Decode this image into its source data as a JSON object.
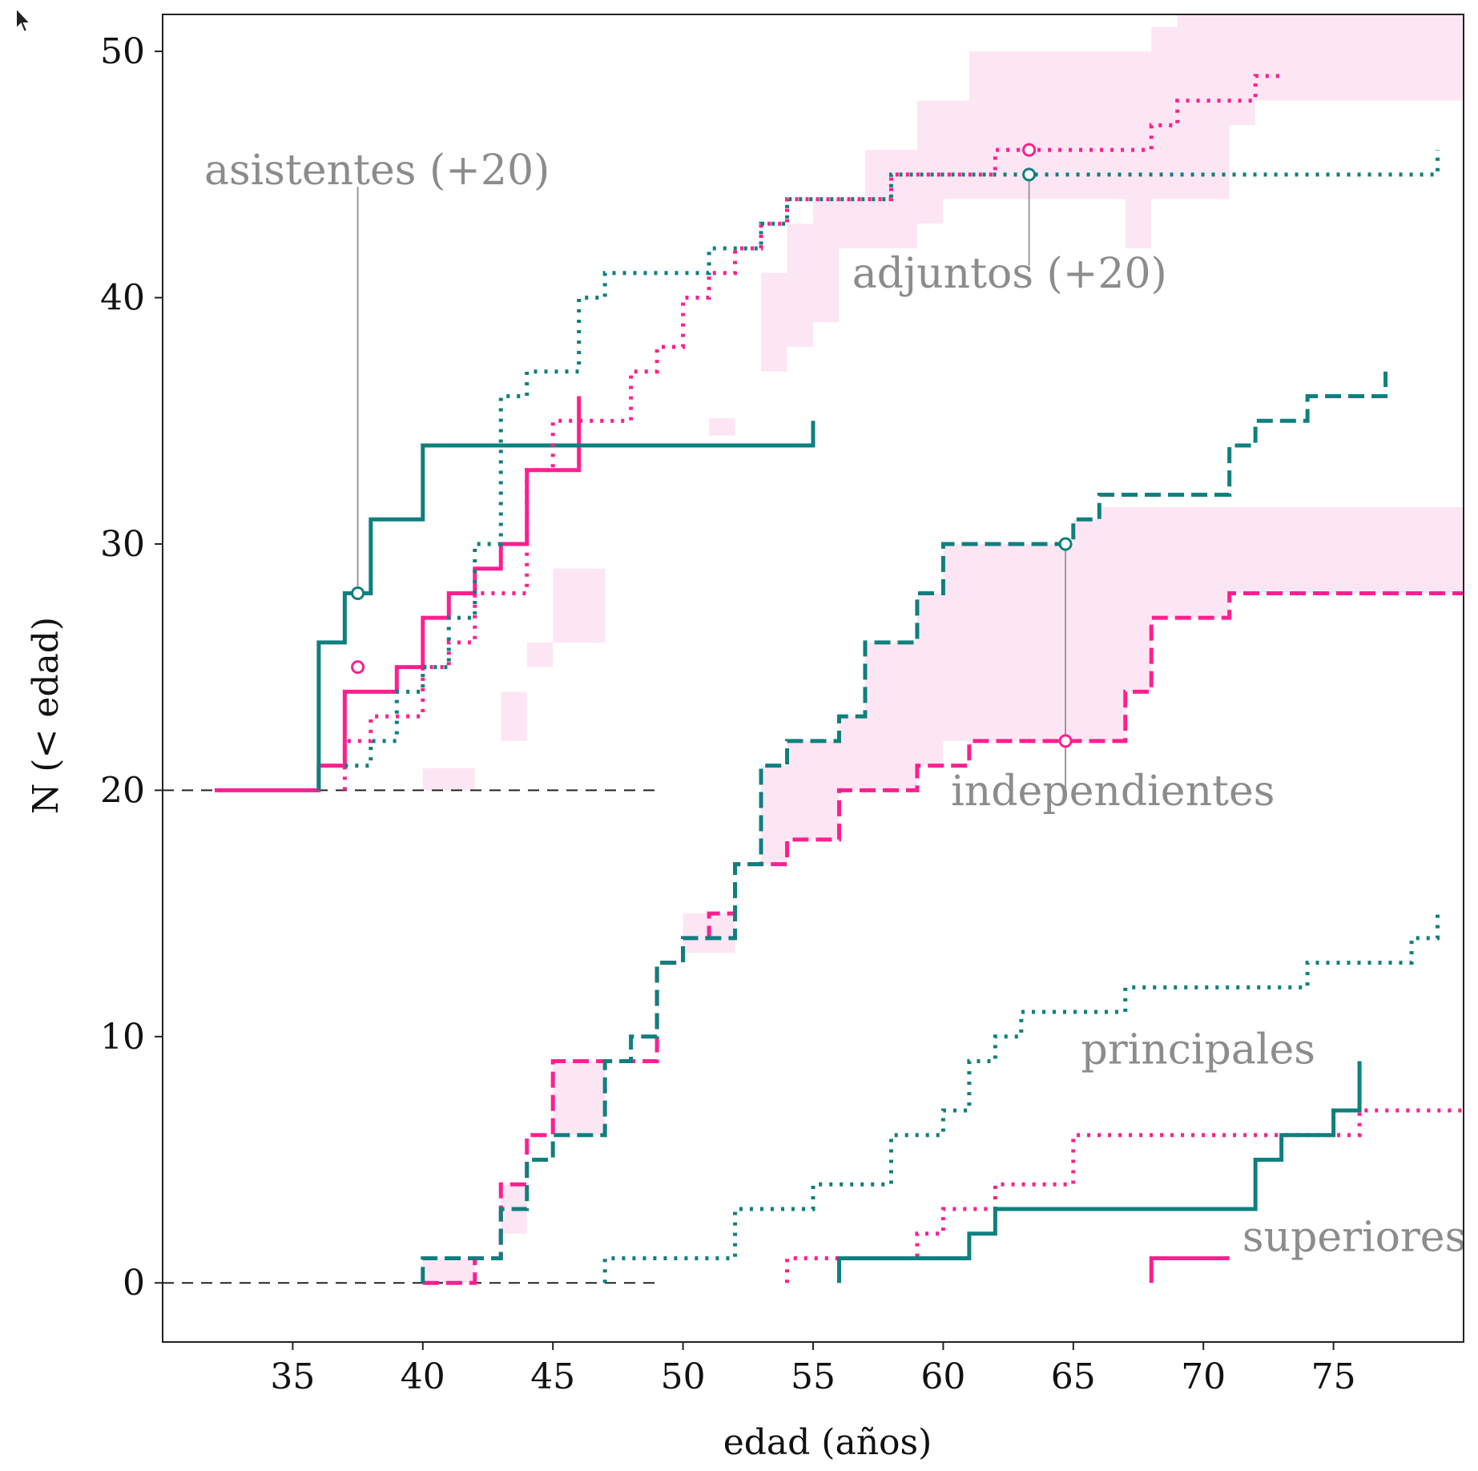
{
  "chart_data": {
    "type": "line",
    "title": "",
    "xlabel": "edad  (años)",
    "ylabel": "N  (< edad)",
    "xlim": [
      30,
      80
    ],
    "ylim": [
      -2.4,
      51.5
    ],
    "xticks": [
      35,
      40,
      45,
      50,
      55,
      60,
      65,
      70,
      75
    ],
    "yticks": [
      0,
      10,
      20,
      30,
      40,
      50
    ],
    "grid": false,
    "colors": {
      "women": "#ff1f8f",
      "men": "#0f7f7f",
      "band": "#fde6f3",
      "annotation": "#8c8c8c"
    },
    "baselines": [
      {
        "y": 20,
        "x": [
          30,
          49
        ]
      },
      {
        "y": 0,
        "x": [
          30,
          49
        ]
      }
    ],
    "series": [
      {
        "style": "solid",
        "color": "#ff1f8f",
        "x": [
          32,
          36,
          36,
          37,
          37,
          39,
          39,
          40,
          40,
          41,
          41,
          42,
          42,
          43,
          43,
          44,
          44,
          46,
          46
        ],
        "y": [
          20,
          20,
          21,
          21,
          24,
          24,
          25,
          25,
          27,
          27,
          28,
          28,
          29,
          29,
          30,
          30,
          33,
          33,
          36
        ]
      },
      {
        "style": "solid",
        "color": "#0f7f7f",
        "x": [
          36,
          36,
          37,
          37,
          38,
          38,
          40,
          40,
          55,
          55
        ],
        "y": [
          20,
          26,
          26,
          28,
          28,
          31,
          31,
          34,
          34,
          35
        ]
      },
      {
        "style": "dotted",
        "color": "#ff1f8f",
        "x": [
          37,
          37,
          38,
          38,
          40,
          40,
          41,
          41,
          42,
          42,
          44,
          44,
          45,
          45,
          46,
          46,
          48,
          48,
          49,
          49,
          50,
          50,
          51,
          51,
          52,
          52,
          53,
          53,
          54,
          54,
          58,
          58,
          61,
          61,
          62,
          62,
          68,
          68,
          69,
          69,
          72,
          72,
          73
        ],
        "y": [
          20,
          22,
          22,
          23,
          23,
          25,
          25,
          26,
          26,
          28,
          28,
          33,
          33,
          35,
          35,
          35,
          35,
          37,
          37,
          38,
          38,
          40,
          40,
          41,
          41,
          42,
          42,
          43,
          43,
          44,
          44,
          45,
          45,
          45,
          45,
          46,
          46,
          47,
          47,
          48,
          48,
          49,
          49
        ]
      },
      {
        "style": "dotted",
        "color": "#0f7f7f",
        "x": [
          37,
          38,
          38,
          39,
          39,
          40,
          40,
          41,
          41,
          42,
          42,
          43,
          43,
          44,
          44,
          46,
          46,
          47,
          47,
          48,
          48,
          51,
          51,
          53,
          53,
          54,
          54,
          55,
          55,
          58,
          58,
          79,
          79
        ],
        "y": [
          21,
          21,
          22,
          22,
          24,
          24,
          25,
          25,
          27,
          27,
          30,
          30,
          36,
          36,
          37,
          37,
          40,
          40,
          41,
          41,
          41,
          41,
          42,
          42,
          43,
          43,
          44,
          44,
          44,
          44,
          45,
          45,
          46
        ]
      },
      {
        "style": "dashed",
        "color": "#ff1f8f",
        "x": [
          40,
          42,
          42,
          43,
          43,
          44,
          44,
          45,
          45,
          47,
          47,
          49,
          49,
          50,
          50,
          51,
          51,
          52,
          52,
          53,
          53,
          54,
          54,
          56,
          56,
          58,
          58,
          59,
          59,
          60,
          60,
          61,
          61,
          67,
          67,
          68,
          68,
          71,
          71,
          80
        ],
        "y": [
          0,
          0,
          1,
          1,
          4,
          4,
          6,
          6,
          9,
          9,
          9,
          9,
          13,
          13,
          14,
          14,
          15,
          15,
          17,
          17,
          17,
          17,
          18,
          18,
          20,
          20,
          20,
          20,
          21,
          21,
          21,
          21,
          22,
          22,
          24,
          24,
          27,
          27,
          28,
          28
        ]
      },
      {
        "style": "dashed",
        "color": "#0f7f7f",
        "x": [
          40,
          40,
          43,
          43,
          44,
          44,
          45,
          45,
          47,
          47,
          48,
          48,
          49,
          49,
          50,
          50,
          52,
          52,
          53,
          53,
          54,
          54,
          56,
          56,
          57,
          57,
          59,
          59,
          60,
          60,
          65,
          65,
          66,
          66,
          71,
          71,
          72,
          72,
          74,
          74,
          77,
          77
        ],
        "y": [
          0,
          1,
          1,
          3,
          3,
          5,
          5,
          6,
          6,
          9,
          9,
          10,
          10,
          13,
          13,
          14,
          14,
          17,
          17,
          21,
          21,
          22,
          22,
          23,
          23,
          26,
          26,
          28,
          28,
          30,
          30,
          31,
          31,
          32,
          32,
          34,
          34,
          35,
          35,
          36,
          36,
          37
        ]
      },
      {
        "style": "dotted",
        "color": "#ff1f8f",
        "x": [
          54,
          54,
          58,
          58,
          59,
          59,
          60,
          60,
          62,
          62,
          65,
          65,
          69,
          69,
          76,
          76,
          80
        ],
        "y": [
          0,
          1,
          1,
          1,
          1,
          2,
          2,
          3,
          3,
          4,
          4,
          6,
          6,
          6,
          6,
          7,
          7
        ]
      },
      {
        "style": "dotted",
        "color": "#0f7f7f",
        "x": [
          47,
          47,
          52,
          52,
          55,
          55,
          58,
          58,
          60,
          60,
          61,
          61,
          62,
          62,
          63,
          63,
          67,
          67,
          74,
          74,
          78,
          78,
          79,
          79
        ],
        "y": [
          0,
          1,
          1,
          3,
          3,
          4,
          4,
          6,
          6,
          7,
          7,
          9,
          9,
          10,
          10,
          11,
          11,
          12,
          12,
          13,
          13,
          14,
          14,
          15
        ]
      },
      {
        "style": "solid",
        "color": "#0f7f7f",
        "x": [
          56,
          56,
          61,
          61,
          62,
          62,
          72,
          72,
          73,
          73,
          75,
          75,
          76,
          76
        ],
        "y": [
          0,
          1,
          1,
          2,
          2,
          3,
          3,
          5,
          5,
          6,
          6,
          7,
          7,
          9
        ]
      }
    ],
    "legend_sample": {
      "style": "solid",
      "color": "#ff1f8f",
      "x": [
        68,
        68,
        71
      ],
      "y": [
        0,
        1,
        1
      ]
    },
    "markers": [
      {
        "x": 37.5,
        "y": 28,
        "color": "#0f7f7f"
      },
      {
        "x": 37.5,
        "y": 25,
        "color": "#ff1f8f"
      },
      {
        "x": 63.3,
        "y": 46,
        "color": "#ff1f8f"
      },
      {
        "x": 63.3,
        "y": 45,
        "color": "#0f7f7f"
      },
      {
        "x": 64.7,
        "y": 30,
        "color": "#0f7f7f"
      },
      {
        "x": 64.7,
        "y": 22,
        "color": "#ff1f8f"
      }
    ],
    "leaders": [
      {
        "x": 37.5,
        "y": [
          28,
          44.5
        ]
      },
      {
        "x": 63.3,
        "y": [
          45,
          41.3
        ]
      },
      {
        "x": 64.7,
        "y": [
          30,
          20
        ]
      }
    ],
    "bands": [
      [
        [
          40,
          20
        ],
        [
          42,
          20
        ],
        [
          42,
          20.9
        ],
        [
          40,
          20.9
        ]
      ],
      [
        [
          43,
          22
        ],
        [
          44,
          22
        ],
        [
          44,
          24
        ],
        [
          43,
          24
        ]
      ],
      [
        [
          44,
          25
        ],
        [
          45,
          25
        ],
        [
          45,
          26
        ],
        [
          44,
          26
        ]
      ],
      [
        [
          45,
          26
        ],
        [
          47,
          26
        ],
        [
          47,
          29
        ],
        [
          45,
          29
        ]
      ],
      [
        [
          51,
          34.4
        ],
        [
          52,
          34.4
        ],
        [
          52,
          35.1
        ],
        [
          51,
          35.1
        ]
      ],
      [
        [
          53,
          37
        ],
        [
          54,
          37
        ],
        [
          54,
          38
        ],
        [
          55,
          38
        ],
        [
          55,
          39
        ],
        [
          56,
          39
        ],
        [
          56,
          42
        ],
        [
          59,
          42
        ],
        [
          59,
          43
        ],
        [
          60,
          43
        ],
        [
          60,
          44
        ],
        [
          67,
          44
        ],
        [
          67,
          42
        ],
        [
          68,
          42
        ],
        [
          68,
          44
        ],
        [
          71,
          44
        ],
        [
          71,
          47
        ],
        [
          72,
          47
        ],
        [
          72,
          48
        ],
        [
          80,
          48
        ],
        [
          80,
          51.5
        ],
        [
          69,
          51.5
        ],
        [
          69,
          51
        ],
        [
          68,
          51
        ],
        [
          68,
          50
        ],
        [
          61,
          50
        ],
        [
          61,
          48
        ],
        [
          59,
          48
        ],
        [
          59,
          46
        ],
        [
          57,
          46
        ],
        [
          57,
          44
        ],
        [
          55,
          44
        ],
        [
          55,
          43
        ],
        [
          54,
          43
        ],
        [
          54,
          41
        ],
        [
          53,
          41
        ]
      ],
      [
        [
          40,
          0
        ],
        [
          42,
          0
        ],
        [
          42,
          1
        ],
        [
          40,
          1
        ]
      ],
      [
        [
          43,
          2
        ],
        [
          44,
          2
        ],
        [
          44,
          4
        ],
        [
          43,
          4
        ]
      ],
      [
        [
          45,
          6
        ],
        [
          47,
          6
        ],
        [
          47,
          9
        ],
        [
          45,
          9
        ]
      ],
      [
        [
          50,
          13.4
        ],
        [
          52,
          13.4
        ],
        [
          52,
          15
        ],
        [
          50,
          15
        ]
      ],
      [
        [
          53,
          17
        ],
        [
          54,
          17
        ],
        [
          54,
          18
        ],
        [
          56,
          18
        ],
        [
          56,
          20
        ],
        [
          59,
          20
        ],
        [
          59,
          21
        ],
        [
          60,
          21
        ],
        [
          60,
          22
        ],
        [
          67,
          22
        ],
        [
          67,
          24
        ],
        [
          68,
          24
        ],
        [
          68,
          27
        ],
        [
          71,
          27
        ],
        [
          71,
          28
        ],
        [
          80,
          28
        ],
        [
          80,
          31.5
        ],
        [
          66,
          31.5
        ],
        [
          66,
          31
        ],
        [
          65,
          31
        ],
        [
          65,
          30
        ],
        [
          60,
          30
        ],
        [
          60,
          28
        ],
        [
          59,
          28
        ],
        [
          59,
          26
        ],
        [
          57,
          26
        ],
        [
          57,
          23
        ],
        [
          56,
          23
        ],
        [
          56,
          22
        ],
        [
          54,
          22
        ],
        [
          54,
          21
        ],
        [
          53,
          21
        ]
      ]
    ],
    "annotations": [
      {
        "text": "asistentes  (+20)",
        "x": 31.6,
        "y": 44.6,
        "anchor": "start"
      },
      {
        "text": "adjuntos  (+20)",
        "x": 56.5,
        "y": 40.4,
        "anchor": "start"
      },
      {
        "text": "independientes",
        "x": 60.3,
        "y": 19.4,
        "anchor": "start"
      },
      {
        "text": "principales",
        "x": 65.3,
        "y": 8.9,
        "anchor": "start"
      },
      {
        "text": "superiores",
        "x": 71.5,
        "y": 1.3,
        "anchor": "start"
      }
    ]
  }
}
